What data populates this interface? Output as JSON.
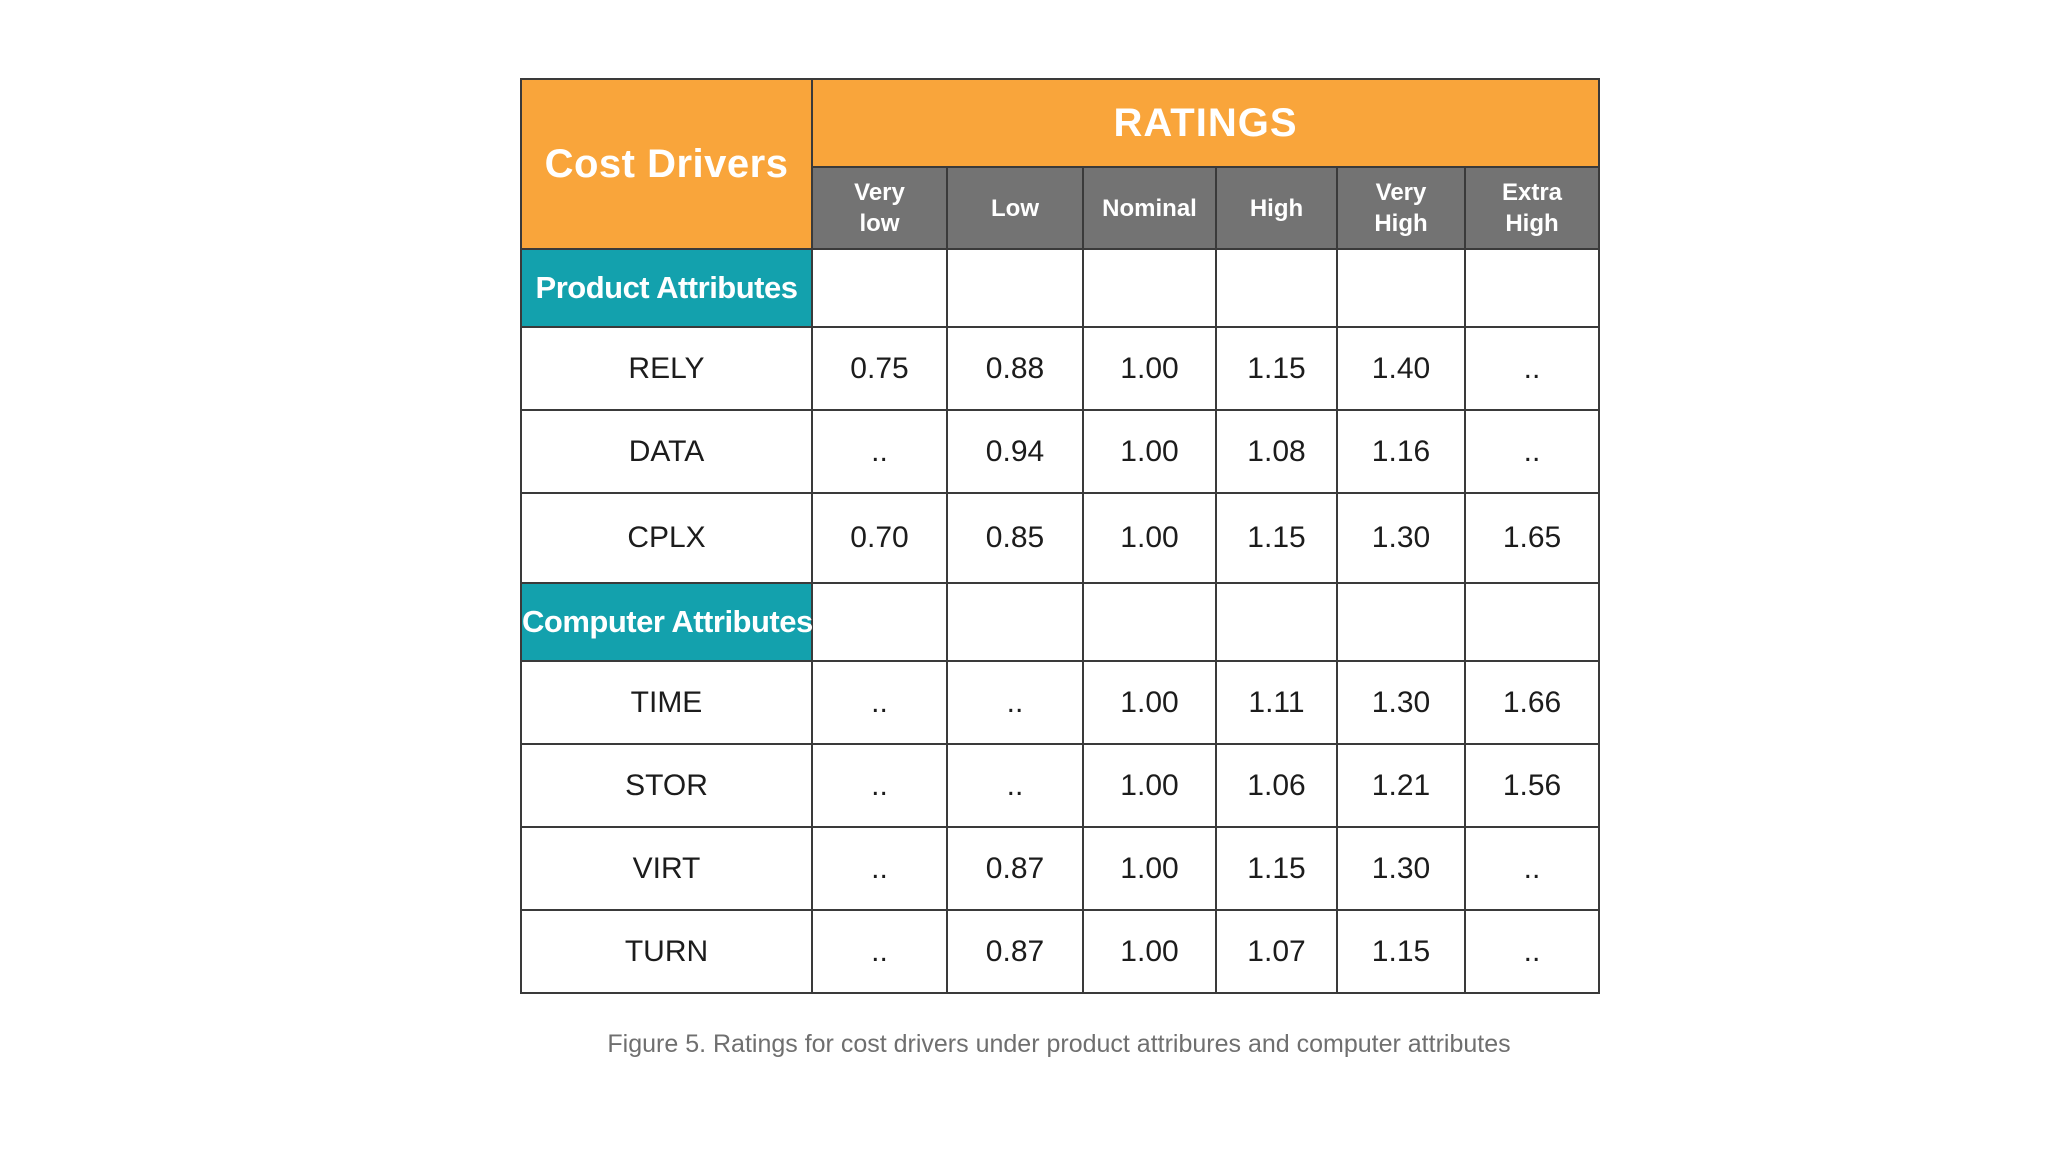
{
  "table": {
    "corner_header": "Cost Drivers",
    "group_header": "RATINGS",
    "rating_levels": [
      "Very low",
      "Low",
      "Nominal",
      "High",
      "Very High",
      "Extra High"
    ],
    "sections": [
      {
        "name": "Product Attributes",
        "rows": [
          {
            "driver": "RELY",
            "values": [
              "0.75",
              "0.88",
              "1.00",
              "1.15",
              "1.40",
              ".."
            ]
          },
          {
            "driver": "DATA",
            "values": [
              "..",
              "0.94",
              "1.00",
              "1.08",
              "1.16",
              ".."
            ]
          },
          {
            "driver": "CPLX",
            "values": [
              "0.70",
              "0.85",
              "1.00",
              "1.15",
              "1.30",
              "1.65"
            ]
          }
        ]
      },
      {
        "name": "Computer Attributes",
        "rows": [
          {
            "driver": "TIME",
            "values": [
              "..",
              "..",
              "1.00",
              "1.11",
              "1.30",
              "1.66"
            ]
          },
          {
            "driver": "STOR",
            "values": [
              "..",
              "..",
              "1.00",
              "1.06",
              "1.21",
              "1.56"
            ]
          },
          {
            "driver": "VIRT",
            "values": [
              "..",
              "0.87",
              "1.00",
              "1.15",
              "1.30",
              ".."
            ]
          },
          {
            "driver": "TURN",
            "values": [
              "..",
              "0.87",
              "1.00",
              "1.07",
              "1.15",
              ".."
            ]
          }
        ]
      }
    ]
  },
  "caption": "Figure 5. Ratings for cost drivers under product attribures and computer attributes",
  "colors": {
    "header_orange": "#f9a53b",
    "subheader_gray": "#737373",
    "section_teal": "#13a1ad",
    "caption_gray": "#6f6f6f"
  }
}
